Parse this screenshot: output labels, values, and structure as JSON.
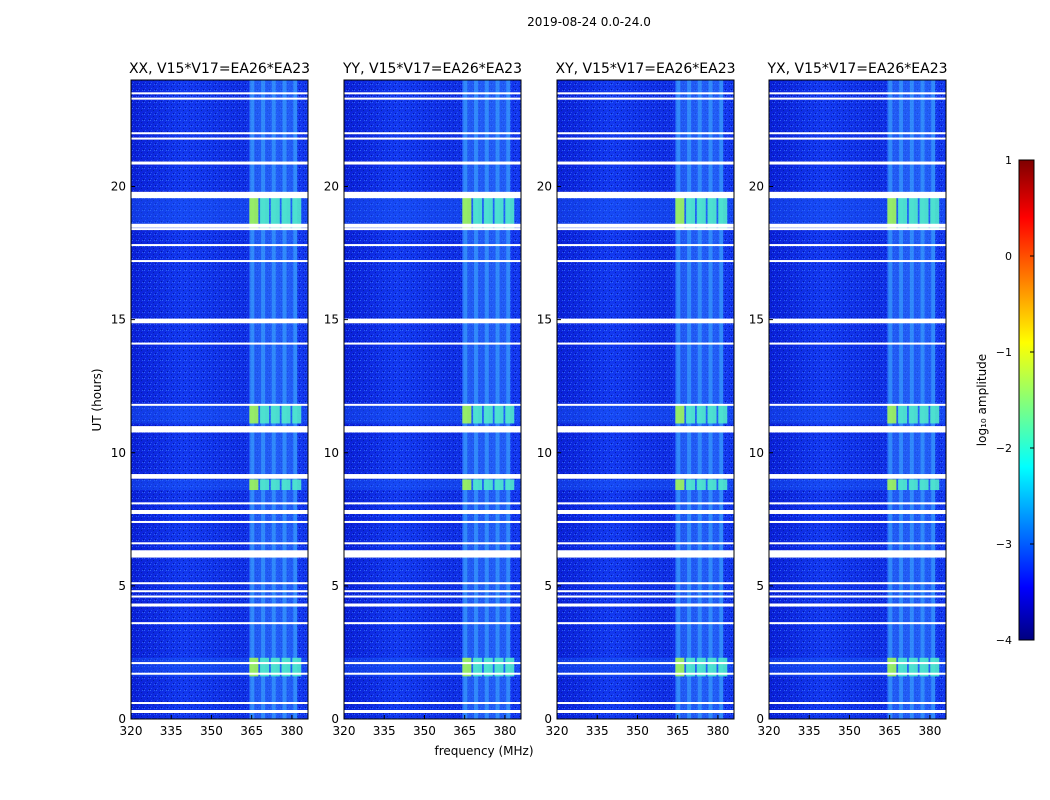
{
  "figure": {
    "suptitle": "2019-08-24 0.0-24.0",
    "xlabel": "frequency (MHz)",
    "ylabel": "UT (hours)"
  },
  "colorbar": {
    "label": "log₁₀ amplitude",
    "ticks": [
      1,
      0,
      -1,
      -2,
      -3,
      -4
    ],
    "tick_labels": [
      "1",
      "0",
      "−1",
      "−2",
      "−3",
      "−4"
    ],
    "vmin": -4,
    "vmax": 1,
    "colormap": "jet",
    "stops": [
      "#00007f",
      "#0000ff",
      "#00ffff",
      "#ffff00",
      "#ff0000",
      "#7f0000"
    ]
  },
  "chart_data": [
    {
      "type": "heatmap",
      "title": "XX, V15*V17=EA26*EA23",
      "xlabel": "",
      "ylabel": "UT (hours)",
      "xlim": [
        320,
        386
      ],
      "ylim": [
        0,
        24
      ],
      "xticks": [
        320,
        335,
        350,
        365,
        380
      ],
      "yticks": [
        0,
        5,
        10,
        15,
        20
      ],
      "band_mhz": [
        364,
        382
      ],
      "flagged_ut_hours": [
        0.3,
        0.6,
        1.7,
        2.1,
        3.6,
        4.3,
        4.6,
        4.8,
        5.1,
        6.1,
        6.3,
        6.6,
        7.4,
        7.8,
        8.1,
        9.1,
        10.8,
        11.8,
        14.1,
        14.9,
        15.0,
        17.2,
        17.8,
        18.4,
        19.6,
        20.9,
        21.8,
        22.0,
        23.3,
        23.5
      ],
      "bright_intervals_ut": [
        [
          18.4,
          19.6
        ],
        [
          11.1,
          11.8
        ],
        [
          8.6,
          9.0
        ],
        [
          1.6,
          2.3
        ]
      ]
    },
    {
      "type": "heatmap",
      "title": "YY, V15*V17=EA26*EA23",
      "xlabel": "frequency (MHz)",
      "ylabel": "",
      "xlim": [
        320,
        386
      ],
      "ylim": [
        0,
        24
      ],
      "xticks": [
        320,
        335,
        350,
        365,
        380
      ],
      "yticks": [
        0,
        5,
        10,
        15,
        20
      ],
      "band_mhz": [
        364,
        382
      ],
      "flagged_ut_hours": [
        0.3,
        0.6,
        1.7,
        2.1,
        3.6,
        4.3,
        4.6,
        4.8,
        5.1,
        6.1,
        6.3,
        6.6,
        7.4,
        7.8,
        8.1,
        9.1,
        10.8,
        11.8,
        14.1,
        14.9,
        15.0,
        17.2,
        17.8,
        18.4,
        19.6,
        20.9,
        21.8,
        22.0,
        23.3,
        23.5
      ],
      "bright_intervals_ut": [
        [
          18.4,
          19.6
        ],
        [
          11.1,
          11.8
        ],
        [
          8.6,
          9.0
        ],
        [
          1.6,
          2.3
        ]
      ]
    },
    {
      "type": "heatmap",
      "title": "XY, V15*V17=EA26*EA23",
      "xlabel": "",
      "ylabel": "",
      "xlim": [
        320,
        386
      ],
      "ylim": [
        0,
        24
      ],
      "xticks": [
        320,
        335,
        350,
        365,
        380
      ],
      "yticks": [
        0,
        5,
        10,
        15,
        20
      ],
      "band_mhz": [
        364,
        382
      ],
      "flagged_ut_hours": [
        0.3,
        0.6,
        1.7,
        2.1,
        3.6,
        4.3,
        4.6,
        4.8,
        5.1,
        6.1,
        6.3,
        6.6,
        7.4,
        7.8,
        8.1,
        9.1,
        10.8,
        11.8,
        14.1,
        14.9,
        15.0,
        17.2,
        17.8,
        18.4,
        19.6,
        20.9,
        21.8,
        22.0,
        23.3,
        23.5
      ],
      "bright_intervals_ut": [
        [
          18.4,
          19.6
        ],
        [
          11.1,
          11.8
        ],
        [
          8.6,
          9.0
        ],
        [
          1.6,
          2.3
        ]
      ]
    },
    {
      "type": "heatmap",
      "title": "YX, V15*V17=EA26*EA23",
      "xlabel": "",
      "ylabel": "",
      "xlim": [
        320,
        386
      ],
      "ylim": [
        0,
        24
      ],
      "xticks": [
        320,
        335,
        350,
        365,
        380
      ],
      "yticks": [
        0,
        5,
        10,
        15,
        20
      ],
      "band_mhz": [
        364,
        382
      ],
      "flagged_ut_hours": [
        0.3,
        0.6,
        1.7,
        2.1,
        3.6,
        4.3,
        4.6,
        4.8,
        5.1,
        6.1,
        6.3,
        6.6,
        7.4,
        7.8,
        8.1,
        9.1,
        10.8,
        11.8,
        14.1,
        14.9,
        15.0,
        17.2,
        17.8,
        18.4,
        19.6,
        20.9,
        21.8,
        22.0,
        23.3,
        23.5
      ],
      "bright_intervals_ut": [
        [
          18.4,
          19.6
        ],
        [
          11.1,
          11.8
        ],
        [
          8.6,
          9.0
        ],
        [
          1.6,
          2.3
        ]
      ]
    }
  ]
}
